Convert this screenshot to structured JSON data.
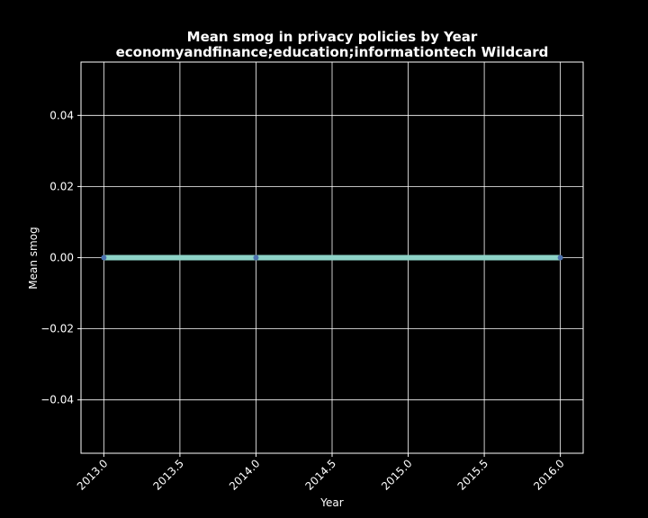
{
  "chart_data": {
    "type": "line",
    "title": "Mean smog in privacy policies by Year",
    "subtitle": "economyandfinance;education;informationtech Wildcard",
    "xlabel": "Year",
    "ylabel": "Mean smog",
    "x": [
      2013,
      2014,
      2016
    ],
    "series": [
      {
        "values": [
          0.0,
          0.0,
          0.0
        ]
      }
    ],
    "xlim": [
      2012.85,
      2016.15
    ],
    "ylim": [
      -0.055,
      0.055
    ],
    "xticks": [
      2013.0,
      2013.5,
      2014.0,
      2014.5,
      2015.0,
      2015.5,
      2016.0
    ],
    "xtick_labels": [
      "2013.0",
      "2013.5",
      "2014.0",
      "2014.5",
      "2015.0",
      "2015.5",
      "2016.0"
    ],
    "yticks": [
      0.04,
      0.02,
      0.0,
      -0.02,
      -0.04
    ],
    "ytick_labels": [
      "0.04",
      "0.02",
      "0.00",
      "−0.02",
      "−0.04"
    ],
    "grid": true,
    "background": "#000000",
    "line_color": "#8dd3c7",
    "marker_color": "#4c72b0"
  }
}
